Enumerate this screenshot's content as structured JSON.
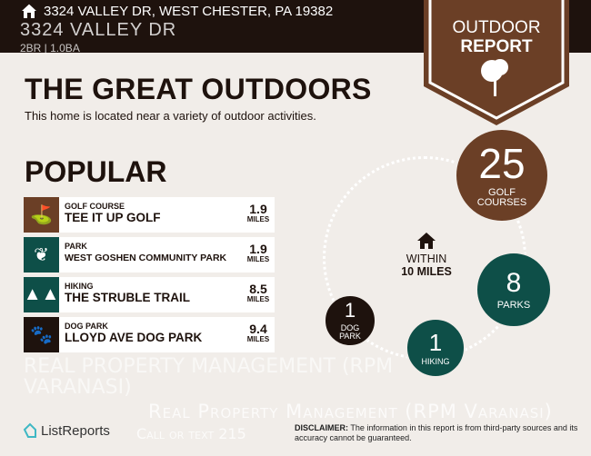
{
  "header": {
    "address": "3324 VALLEY DR, WEST CHESTER, PA 19382",
    "watermark_address": "3324 VALLEY DR",
    "watermark_beds": "2BR | 1.0BA"
  },
  "badge": {
    "line1": "OUTDOOR",
    "line2": "REPORT",
    "icon": "tree-icon"
  },
  "title": "THE GREAT OUTDOORS",
  "subtitle": "This home is located near a variety of outdoor activities.",
  "popular": {
    "heading": "POPULAR",
    "items": [
      {
        "category": "GOLF COURSE",
        "name": "TEE IT UP GOLF",
        "distance": "1.9",
        "unit": "MILES",
        "icon": "golf-bag-icon",
        "color": "#6b3f26"
      },
      {
        "category": "PARK",
        "name": "WEST GOSHEN COMMUNITY PARK",
        "distance": "1.9",
        "unit": "MILES",
        "icon": "park-icon",
        "color": "#0e4f48"
      },
      {
        "category": "HIKING",
        "name": "THE STRUBLE TRAIL",
        "distance": "8.5",
        "unit": "MILES",
        "icon": "trees-icon",
        "color": "#0e4f48"
      },
      {
        "category": "DOG PARK",
        "name": "LLOYD AVE DOG PARK",
        "distance": "9.4",
        "unit": "MILES",
        "icon": "paw-icon",
        "color": "#1e120d"
      }
    ]
  },
  "summary": {
    "within_line1": "WITHIN",
    "within_line2": "10 MILES",
    "counts": [
      {
        "value": "25",
        "label1": "GOLF",
        "label2": "COURSES",
        "color": "#6b3f26"
      },
      {
        "value": "8",
        "label1": "PARKS",
        "label2": "",
        "color": "#0e4f48"
      },
      {
        "value": "1",
        "label1": "HIKING",
        "label2": "",
        "color": "#0e4f48"
      },
      {
        "value": "1",
        "label1": "DOG",
        "label2": "PARK",
        "color": "#1e120d"
      }
    ]
  },
  "footer": {
    "logo": "ListReports",
    "disclaimer_label": "DISCLAIMER:",
    "disclaimer": " The information in this report is from third-party sources and its accuracy cannot be guaranteed."
  },
  "watermark": {
    "line1": "Real Property Management (RPM Varanasi)",
    "line2": "Call or text 215",
    "diagonal": "REAL PROPERTY MANAGEMENT (RPM VARANASI)"
  }
}
